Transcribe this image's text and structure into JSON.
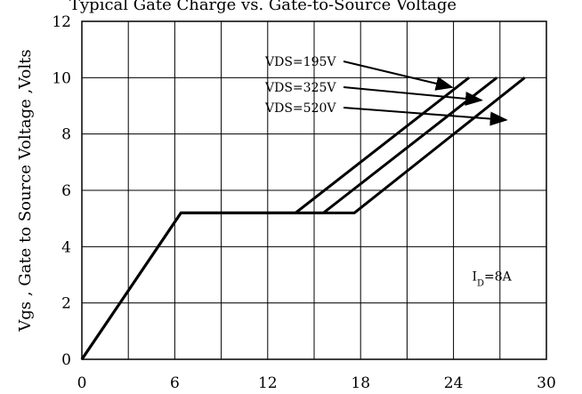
{
  "header_text": "Typical Gate Charge vs. Gate-to-Source Voltage",
  "chart_data": {
    "type": "line",
    "ylabel": "Vgs , Gate to Source Voltage ,Volts",
    "xlabel": "",
    "xlim": [
      0,
      30
    ],
    "ylim": [
      0,
      12
    ],
    "xticks": [
      0,
      6,
      12,
      18,
      24,
      30
    ],
    "yticks": [
      0,
      2,
      4,
      6,
      8,
      10,
      12
    ],
    "grid": true,
    "series": [
      {
        "name": "VDS=195V",
        "x": [
          0,
          6.4,
          13.8,
          25.0
        ],
        "y": [
          0,
          5.2,
          5.2,
          10
        ]
      },
      {
        "name": "VDS=325V",
        "x": [
          0,
          6.4,
          15.6,
          26.8
        ],
        "y": [
          0,
          5.2,
          5.2,
          10
        ]
      },
      {
        "name": "VDS=520V",
        "x": [
          0,
          6.4,
          17.6,
          28.6
        ],
        "y": [
          0,
          5.2,
          5.2,
          10
        ]
      }
    ],
    "annotations": [
      {
        "text": "VDS=195V",
        "points_to_series": 0
      },
      {
        "text": "VDS=325V",
        "points_to_series": 1
      },
      {
        "text": "VDS=520V",
        "points_to_series": 2
      }
    ],
    "condition_label": {
      "text": "I",
      "subscript": "D",
      "suffix": "=8A"
    }
  }
}
